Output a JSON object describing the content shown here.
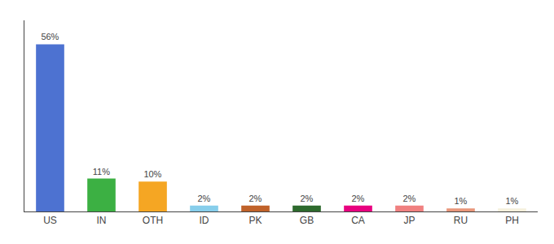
{
  "chart_data": {
    "type": "bar",
    "categories": [
      "US",
      "IN",
      "OTH",
      "ID",
      "PK",
      "GB",
      "CA",
      "JP",
      "RU",
      "PH"
    ],
    "values": [
      56,
      11,
      10,
      2,
      2,
      2,
      2,
      2,
      1,
      1
    ],
    "value_labels": [
      "56%",
      "11%",
      "10%",
      "2%",
      "2%",
      "2%",
      "2%",
      "2%",
      "1%",
      "1%"
    ],
    "colors": [
      "#4d72d1",
      "#3cb043",
      "#f5a623",
      "#87ceeb",
      "#c0622a",
      "#2d6a2d",
      "#e8007f",
      "#f08080",
      "#e8967a",
      "#f5f0dc"
    ],
    "ylim": [
      0,
      64
    ],
    "grid": false,
    "data_labels": true,
    "tick_labels": "x"
  }
}
